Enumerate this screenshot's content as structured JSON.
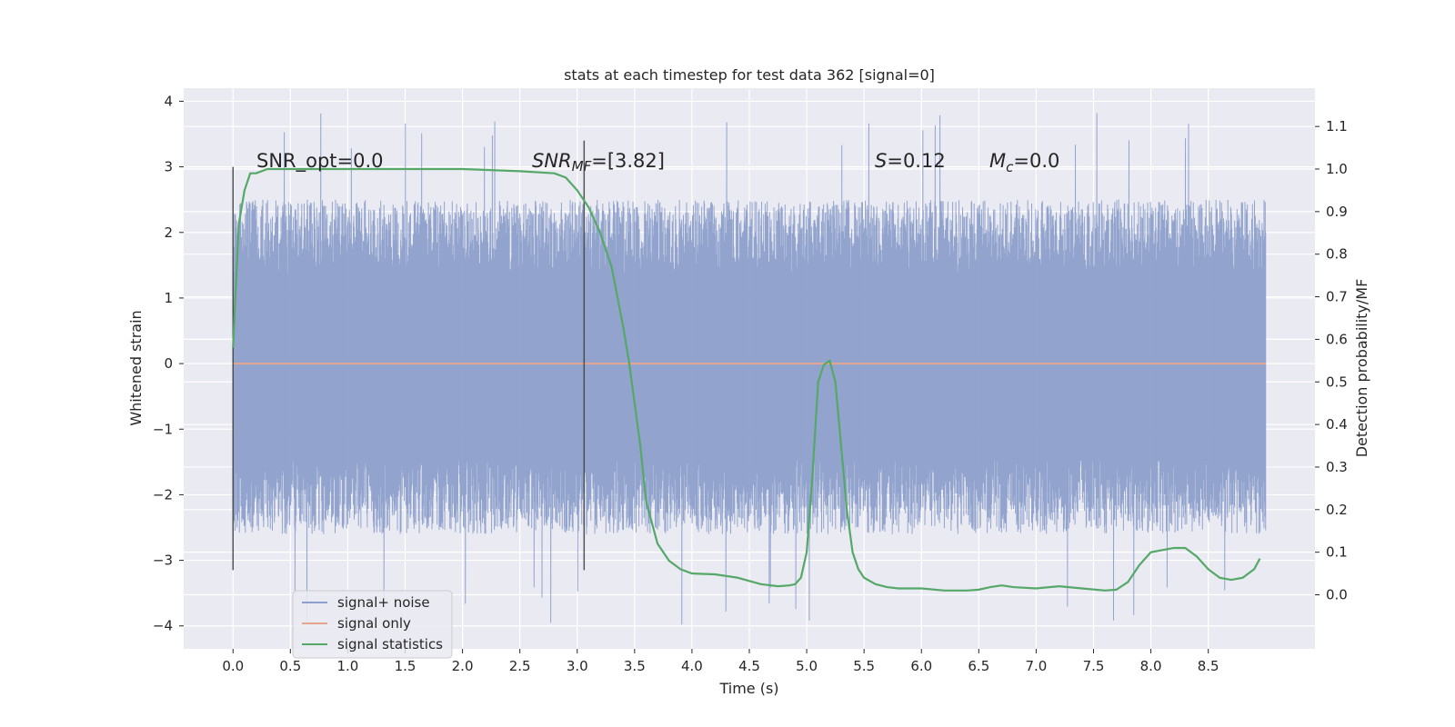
{
  "chart_data": {
    "type": "line",
    "title": "stats at each timestep for test data 362 [signal=0]",
    "xlabel": "Time (s)",
    "ylabel": "Whitened strain",
    "y2label": "Detection probability/MF",
    "xlim": [
      -0.43,
      9.43
    ],
    "ylim": [
      -4.35,
      4.2
    ],
    "y2lim": [
      -0.127,
      1.19
    ],
    "x_ticks": [
      "0.0",
      "0.5",
      "1.0",
      "1.5",
      "2.0",
      "2.5",
      "3.0",
      "3.5",
      "4.0",
      "4.5",
      "5.0",
      "5.5",
      "6.0",
      "6.5",
      "7.0",
      "7.5",
      "8.0",
      "8.5"
    ],
    "y_ticks": [
      "4",
      "3",
      "2",
      "1",
      "0",
      "−1",
      "−2",
      "−3",
      "−4"
    ],
    "y2_ticks": [
      "0.0",
      "0.1",
      "0.2",
      "0.3",
      "0.4",
      "0.5",
      "0.6",
      "0.7",
      "0.8",
      "0.9",
      "1.0",
      "1.1"
    ],
    "grid": true,
    "legend_position": "lower-left",
    "annotations": {
      "snr_opt": "SNR_opt=0.0",
      "snr_mf_main": "SNR",
      "snr_mf_sub": "MF",
      "snr_mf_val": "=[3.82]",
      "s_main": "S",
      "s_val": "=0.12",
      "mc_main": "M",
      "mc_sub": "c",
      "mc_val": "=0.0"
    },
    "vlines": [
      {
        "x": 0.0,
        "y_range": [
          -3.15,
          3.0
        ]
      },
      {
        "x": 3.06,
        "y_range": [
          -3.15,
          3.4
        ]
      }
    ],
    "series": [
      {
        "name": "signal+ noise",
        "color": "#8da0cb",
        "kind": "noise",
        "x_range": [
          0.0,
          9.0
        ],
        "typical_range": [
          -2.6,
          2.5
        ],
        "peak_max": 3.85,
        "peak_min": -4.0
      },
      {
        "name": "signal only",
        "color": "#e5a58e",
        "x": [
          0.0,
          9.0
        ],
        "y": [
          0.0,
          0.0
        ]
      },
      {
        "name": "signal statistics",
        "color": "#55a868",
        "axis": "right",
        "x": [
          0.0,
          0.05,
          0.1,
          0.15,
          0.2,
          0.3,
          0.5,
          1.0,
          1.5,
          2.0,
          2.5,
          2.8,
          2.9,
          3.0,
          3.05,
          3.1,
          3.2,
          3.3,
          3.4,
          3.45,
          3.5,
          3.55,
          3.6,
          3.7,
          3.8,
          3.9,
          4.0,
          4.2,
          4.4,
          4.6,
          4.75,
          4.85,
          4.9,
          4.95,
          5.0,
          5.05,
          5.1,
          5.15,
          5.2,
          5.25,
          5.3,
          5.35,
          5.4,
          5.45,
          5.5,
          5.6,
          5.7,
          5.8,
          6.0,
          6.2,
          6.4,
          6.5,
          6.6,
          6.7,
          6.8,
          7.0,
          7.2,
          7.4,
          7.6,
          7.7,
          7.8,
          7.9,
          8.0,
          8.2,
          8.3,
          8.4,
          8.5,
          8.6,
          8.7,
          8.8,
          8.9,
          8.95
        ],
        "y": [
          0.58,
          0.87,
          0.95,
          0.99,
          0.99,
          1.0,
          1.0,
          1.0,
          1.0,
          1.0,
          0.995,
          0.99,
          0.98,
          0.95,
          0.93,
          0.91,
          0.85,
          0.77,
          0.63,
          0.55,
          0.45,
          0.35,
          0.22,
          0.12,
          0.08,
          0.06,
          0.05,
          0.048,
          0.04,
          0.025,
          0.02,
          0.022,
          0.025,
          0.04,
          0.1,
          0.28,
          0.5,
          0.54,
          0.55,
          0.5,
          0.35,
          0.2,
          0.1,
          0.06,
          0.04,
          0.025,
          0.018,
          0.015,
          0.015,
          0.01,
          0.01,
          0.012,
          0.018,
          0.022,
          0.018,
          0.015,
          0.02,
          0.015,
          0.01,
          0.012,
          0.03,
          0.07,
          0.1,
          0.11,
          0.11,
          0.09,
          0.06,
          0.04,
          0.035,
          0.04,
          0.06,
          0.085
        ]
      }
    ]
  }
}
